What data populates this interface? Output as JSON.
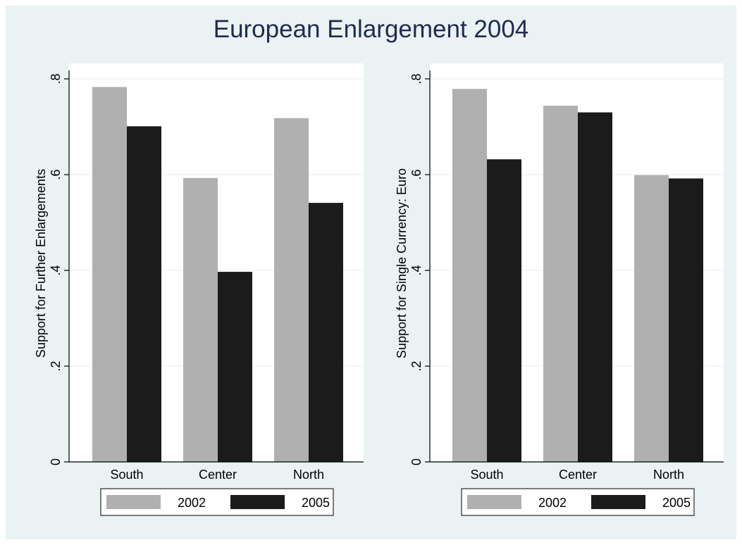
{
  "title": "European Enlargement 2004",
  "colors": {
    "background": "#eaf2f3",
    "plot_area": "#ffffff",
    "grid": "#eaf2f3",
    "series_2002": "#b0b0b0",
    "series_2005": "#1b1b1b",
    "title": "#1e2c52"
  },
  "chart_data": [
    {
      "type": "bar",
      "categories": [
        "South",
        "Center",
        "North"
      ],
      "series": [
        {
          "name": "2002",
          "values": [
            0.783,
            0.593,
            0.718
          ]
        },
        {
          "name": "2005",
          "values": [
            0.701,
            0.397,
            0.541
          ]
        }
      ],
      "title": "",
      "xlabel": "",
      "ylabel": "Support for Further Enlargements",
      "ylim": [
        0,
        0.8
      ],
      "yticks": [
        "0",
        ".2",
        ".4",
        ".6",
        ".8"
      ],
      "grid": true,
      "legend": "bottom"
    },
    {
      "type": "bar",
      "categories": [
        "South",
        "Center",
        "North"
      ],
      "series": [
        {
          "name": "2002",
          "values": [
            0.779,
            0.744,
            0.599
          ]
        },
        {
          "name": "2005",
          "values": [
            0.632,
            0.73,
            0.592
          ]
        }
      ],
      "title": "",
      "xlabel": "",
      "ylabel": "Support for Single Currency: Euro",
      "ylim": [
        0,
        0.8
      ],
      "yticks": [
        "0",
        ".2",
        ".4",
        ".6",
        ".8"
      ],
      "grid": true,
      "legend": "bottom"
    }
  ]
}
